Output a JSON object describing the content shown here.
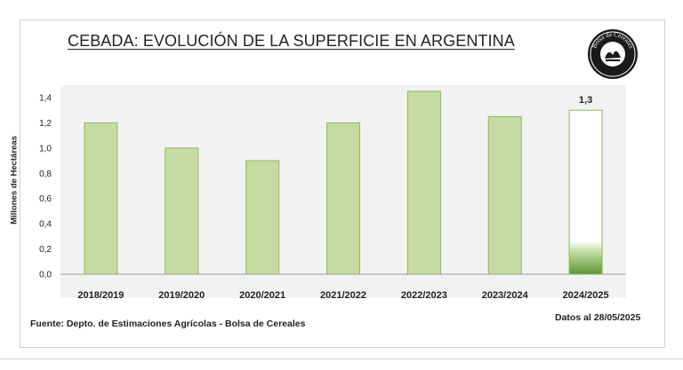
{
  "title": "CEBADA: EVOLUCIÓN DE LA SUPERFICIE EN ARGENTINA",
  "logo_text": "Bolsa de Cereales",
  "source": "Fuente: Depto. de Estimaciones Agrícolas - Bolsa de Cereales",
  "date_note": "Datos al 28/05/2025",
  "colors": {
    "bar_fill": "#c5dba1",
    "bar_stroke": "#8fb858",
    "projection_fill": "#ffffff",
    "projection_base": "#5e9532",
    "plot_bg": "#f2f2f2"
  },
  "chart_data": {
    "type": "bar",
    "title": "CEBADA: EVOLUCIÓN DE LA SUPERFICIE EN ARGENTINA",
    "xlabel": "",
    "ylabel": "Millones de Hectáreas",
    "ylim": [
      0,
      1.4
    ],
    "yticks": [
      "0,0",
      "0,2",
      "0,4",
      "0,6",
      "0,8",
      "1,0",
      "1,2",
      "1,4"
    ],
    "categories": [
      "2018/2019",
      "2019/2020",
      "2020/2021",
      "2021/2022",
      "2022/2023",
      "2023/2024",
      "2024/2025"
    ],
    "values": [
      1.2,
      1.0,
      0.9,
      1.2,
      1.45,
      1.25,
      1.3
    ],
    "data_labels": [
      "",
      "",
      "",
      "",
      "",
      "",
      "1,3"
    ],
    "projected": [
      false,
      false,
      false,
      false,
      false,
      false,
      true
    ],
    "grid": false,
    "legend": "none"
  }
}
